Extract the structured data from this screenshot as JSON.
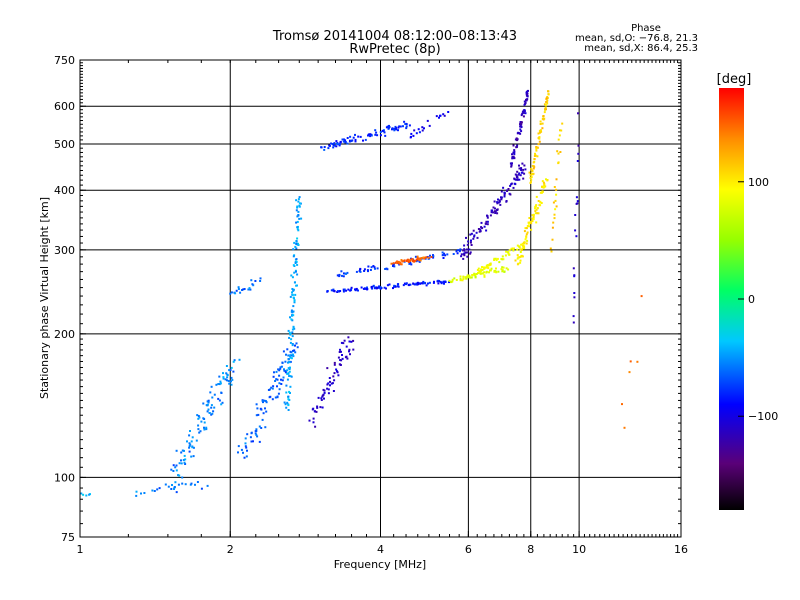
{
  "chart_data": {
    "type": "scatter",
    "title": "Tromsø 20141004 08:12:00–08:13:43",
    "subtitle": "RwPretec (8p)",
    "xlabel": "Frequency [MHz]",
    "ylabel": "Stationary phase Virtual Height [km]",
    "x_scale": "log",
    "y_scale": "log",
    "xlim": [
      1,
      16
    ],
    "ylim": [
      75,
      750
    ],
    "x_ticks": [
      1,
      2,
      4,
      6,
      8,
      10,
      16
    ],
    "y_ticks": [
      75,
      100,
      200,
      300,
      400,
      500,
      600,
      750
    ],
    "x_gridlines": [
      2,
      4,
      6,
      8,
      10
    ],
    "y_gridlines": [
      100,
      200,
      300,
      400,
      500,
      600
    ],
    "grid": true,
    "phase_box": {
      "title": "Phase",
      "line_o": "mean, sd,O: −76.8, 21.3",
      "line_x": "mean, sd,X:  86.4, 25.3"
    },
    "colorbar": {
      "label": "[deg]",
      "range": [
        -180,
        180
      ],
      "ticks": [
        100,
        0,
        -100
      ],
      "tick_labels": [
        "100",
        "0",
        "−100"
      ]
    },
    "series": [
      {
        "traces": [
          {
            "x": [
              1.0,
              1.05
            ],
            "y": [
              92,
              92
            ],
            "phase": -40,
            "n": 6,
            "sx": 0.03,
            "sy": 0.02
          },
          {
            "x": [
              1.3,
              1.75
            ],
            "y": [
              93,
              97
            ],
            "phase": -60,
            "n": 25,
            "sx": 0.05,
            "sy": 0.03
          },
          {
            "x": [
              1.55,
              2.05
            ],
            "y": [
              100,
              180
            ],
            "phase": -55,
            "n": 110,
            "sx": 0.06,
            "sy": 0.06
          },
          {
            "x": [
              2.1,
              2.7
            ],
            "y": [
              110,
              190
            ],
            "phase": -65,
            "n": 100,
            "sx": 0.05,
            "sy": 0.05
          },
          {
            "x": [
              2.6,
              2.75
            ],
            "y": [
              140,
              390
            ],
            "phase": -45,
            "n": 130,
            "sx": 0.02,
            "sy": 0.05
          },
          {
            "x": [
              2.0,
              2.3
            ],
            "y": [
              240,
              260
            ],
            "phase": -60,
            "n": 20,
            "sx": 0.03,
            "sy": 0.03
          },
          {
            "x": [
              2.9,
              3.5
            ],
            "y": [
              130,
              195
            ],
            "phase": -110,
            "n": 70,
            "sx": 0.04,
            "sy": 0.07
          },
          {
            "x": [
              3.05,
              4.6
            ],
            "y": [
              490,
              550
            ],
            "phase": -80,
            "n": 90,
            "sx": 0.02,
            "sy": 0.025
          },
          {
            "x": [
              4.6,
              5.5
            ],
            "y": [
              520,
              590
            ],
            "phase": -95,
            "n": 20,
            "sx": 0.02,
            "sy": 0.02
          },
          {
            "x": [
              3.1,
              5.5
            ],
            "y": [
              245,
              258
            ],
            "phase": -85,
            "n": 110,
            "sx": 0.02,
            "sy": 0.015
          },
          {
            "x": [
              5.5,
              7.2
            ],
            "y": [
              258,
              275
            ],
            "phase": 80,
            "n": 70,
            "sx": 0.02,
            "sy": 0.02
          },
          {
            "x": [
              3.3,
              6.0
            ],
            "y": [
              265,
              300
            ],
            "phase": -75,
            "n": 80,
            "sx": 0.03,
            "sy": 0.02
          },
          {
            "x": [
              4.2,
              5.0
            ],
            "y": [
              280,
              290
            ],
            "phase": 150,
            "n": 50,
            "sx": 0.02,
            "sy": 0.015
          },
          {
            "x": [
              5.8,
              7.8
            ],
            "y": [
              290,
              450
            ],
            "phase": -115,
            "n": 120,
            "sx": 0.02,
            "sy": 0.05
          },
          {
            "x": [
              7.3,
              7.9
            ],
            "y": [
              450,
              640
            ],
            "phase": -115,
            "n": 70,
            "sx": 0.01,
            "sy": 0.04
          },
          {
            "x": [
              6.3,
              7.8
            ],
            "y": [
              270,
              310
            ],
            "phase": 90,
            "n": 60,
            "sx": 0.02,
            "sy": 0.02
          },
          {
            "x": [
              7.5,
              8.6
            ],
            "y": [
              280,
              420
            ],
            "phase": 100,
            "n": 90,
            "sx": 0.015,
            "sy": 0.05
          },
          {
            "x": [
              8.0,
              8.7
            ],
            "y": [
              420,
              650
            ],
            "phase": 110,
            "n": 70,
            "sx": 0.01,
            "sy": 0.04
          },
          {
            "x": [
              8.8,
              9.2
            ],
            "y": [
              300,
              560
            ],
            "phase": 110,
            "n": 25,
            "sx": 0.01,
            "sy": 0.05
          },
          {
            "x": [
              9.7,
              10.0
            ],
            "y": [
              180,
              610
            ],
            "phase": -110,
            "n": 18,
            "sx": 0.005,
            "sy": 0.2
          },
          {
            "x": [
              12.0,
              13.5
            ],
            "y": [
              100,
              260
            ],
            "phase": 150,
            "n": 6,
            "sx": 0.02,
            "sy": 0.2
          }
        ]
      }
    ]
  }
}
